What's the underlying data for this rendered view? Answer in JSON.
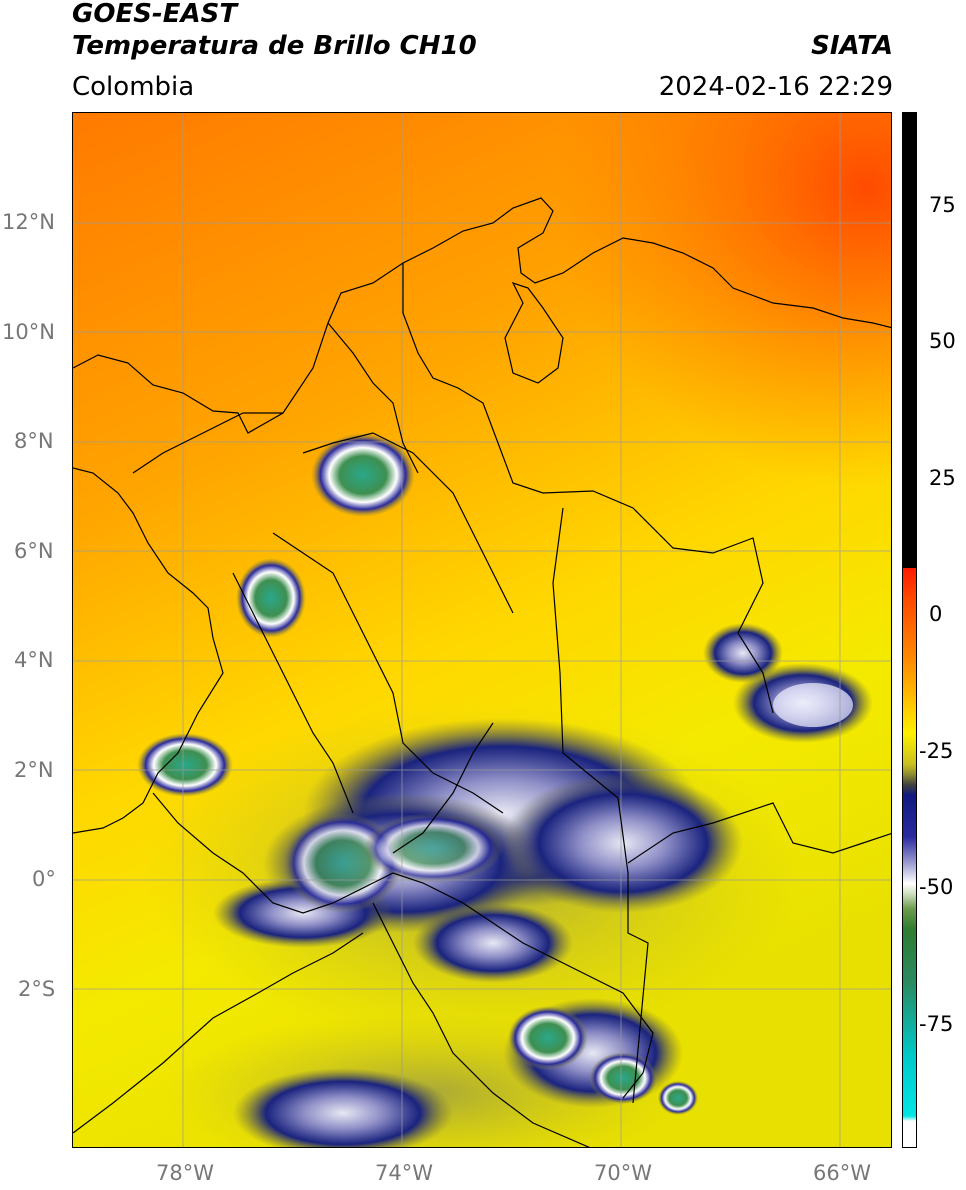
{
  "header": {
    "satellite": "GOES-EAST",
    "product": "Temperatura de Brillo CH10",
    "agency": "SIATA",
    "region": "Colombia",
    "datetime": "2024-02-16 22:29"
  },
  "axes": {
    "lat_ticks": [
      "12°N",
      "10°N",
      "8°N",
      "6°N",
      "4°N",
      "2°N",
      "0°",
      "2°S"
    ],
    "lon_ticks": [
      "78°W",
      "74°W",
      "70°W",
      "66°W"
    ],
    "lon_range": [
      -80,
      -65
    ],
    "lat_range": [
      -4.9,
      14.0
    ]
  },
  "colorbar": {
    "ticks": [
      "75",
      "50",
      "25",
      "0",
      "-25",
      "-50",
      "-75"
    ],
    "range": [
      -95,
      90
    ],
    "colors": {
      "warm_black": "#000000",
      "red": "#ff1a00",
      "orange": "#ff8c00",
      "yellow": "#fff000",
      "olive": "#8a8a30",
      "navy": "#101a80",
      "white": "#ffffff",
      "green": "#2e7d32",
      "cyan": "#00e5e5"
    }
  }
}
